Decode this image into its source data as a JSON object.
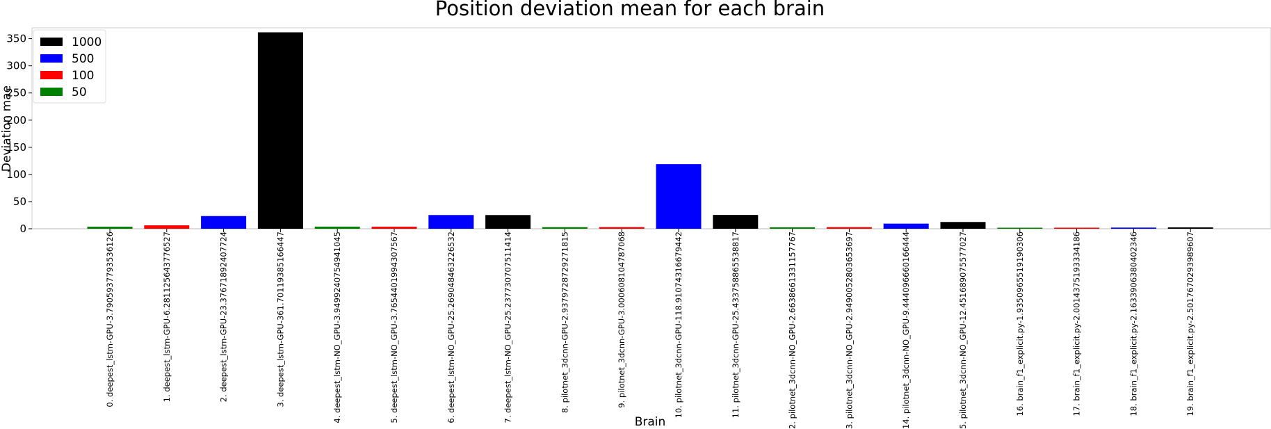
{
  "chart_data": {
    "type": "bar",
    "title": "Position deviation mean for each brain",
    "xlabel": "Brain",
    "ylabel": "Deviation mae",
    "ylim": [
      0,
      370
    ],
    "yticks": [
      0,
      50,
      100,
      150,
      200,
      250,
      300,
      350
    ],
    "grid": false,
    "legend_position": "top-left",
    "legend": [
      {
        "label": "1000",
        "color": "#000000"
      },
      {
        "label": "500",
        "color": "#0000ff"
      },
      {
        "label": "100",
        "color": "#ff0000"
      },
      {
        "label": "50",
        "color": "#008000"
      }
    ],
    "categories": [
      "0. deepest_lstm-GPU-3.790593779353612​6",
      "1. deepest_lstm-GPU-6.281125643776527",
      "2. deepest_lstm-GPU-23.37671892407724",
      "3. deepest_lstm-GPU-361.7011938516644​7",
      "4. deepest_lstm-NO_GPU-3.949924075494104​5",
      "5. deepest_lstm-NO_GPU-3.765440199430756​7",
      "6. deepest_lstm-NO_GPU-25.269048463226532",
      "7. deepest_lstm-NO_GPU-25.237730707511414",
      "8. pilotnet_3dcnn-GPU-2.937972872927181​5",
      "9. pilotnet_3dcnn-GPU-3.000608104787068",
      "10. pilotnet_3dcnn-GPU-118.91074316679442",
      "11. pilotnet_3dcnn-GPU-25.43375886553881​7",
      "12. pilotnet_3dcnn-NO_GPU-2.663866133115776​7",
      "13. pilotnet_3dcnn-NO_GPU-2.949005280365369​7",
      "14. pilotnet_3dcnn-NO_GPU-9.444096660166444",
      "15. pilotnet_3dcnn-NO_GPU-12.451689075577027",
      "16. brain_f1_explicit.py-1.935096551919030​6",
      "17. brain_f1_explicit.py-2.001437519333418​6",
      "18. brain_f1_explicit.py-2.163390638040234​6",
      "19. brain_f1_explicit.py-2.501767029398960​7"
    ],
    "values": [
      3.79,
      6.28,
      23.38,
      361.7,
      3.95,
      3.77,
      25.27,
      25.24,
      2.94,
      3.0,
      118.91,
      25.43,
      2.66,
      2.95,
      9.44,
      12.45,
      1.94,
      2.0,
      2.16,
      2.5
    ],
    "bar_colors": [
      "#008000",
      "#ff0000",
      "#0000ff",
      "#000000",
      "#008000",
      "#ff0000",
      "#0000ff",
      "#000000",
      "#008000",
      "#ff0000",
      "#0000ff",
      "#000000",
      "#008000",
      "#ff0000",
      "#0000ff",
      "#000000",
      "#008000",
      "#ff0000",
      "#0000ff",
      "#000000"
    ]
  }
}
